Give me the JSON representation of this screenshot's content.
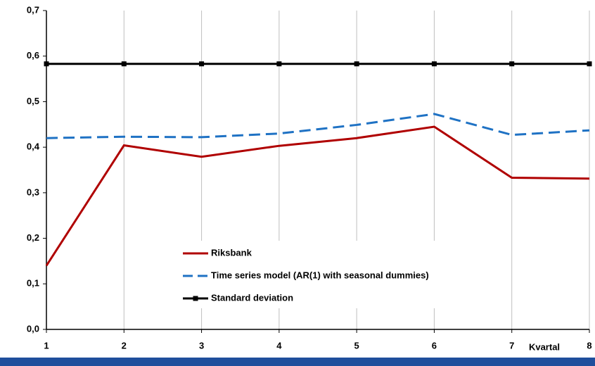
{
  "chart_data": {
    "type": "line",
    "x_label": "Kvartal",
    "x": [
      1,
      2,
      3,
      4,
      5,
      6,
      7,
      8
    ],
    "xlim": [
      1,
      8
    ],
    "xticks": [
      1,
      2,
      3,
      4,
      5,
      6,
      7,
      8
    ],
    "ylim": [
      0,
      0.7
    ],
    "yticks": [
      {
        "value": 0,
        "label": "0,0"
      },
      {
        "value": 0.1,
        "label": "0,1"
      },
      {
        "value": 0.2,
        "label": "0,2"
      },
      {
        "value": 0.3,
        "label": "0,3"
      },
      {
        "value": 0.4,
        "label": "0,4"
      },
      {
        "value": 0.5,
        "label": "0,5"
      },
      {
        "value": 0.6,
        "label": "0,6"
      },
      {
        "value": 0.7,
        "label": "0,7"
      }
    ],
    "grid": "x",
    "series": [
      {
        "name": "Riksbank",
        "color": "#b00000",
        "dash": false,
        "marker": "none",
        "values": [
          0.14,
          0.404,
          0.379,
          0.403,
          0.42,
          0.445,
          0.333,
          0.331
        ]
      },
      {
        "name": "Time series model (AR(1) with seasonal dummies)",
        "color": "#1f72c4",
        "dash": true,
        "marker": "none",
        "values": [
          0.42,
          0.423,
          0.422,
          0.43,
          0.449,
          0.473,
          0.427,
          0.437
        ]
      },
      {
        "name": "Standard deviation",
        "color": "#000000",
        "dash": false,
        "marker": "square",
        "values": [
          0.583,
          0.583,
          0.583,
          0.583,
          0.583,
          0.583,
          0.583,
          0.583
        ]
      }
    ]
  }
}
